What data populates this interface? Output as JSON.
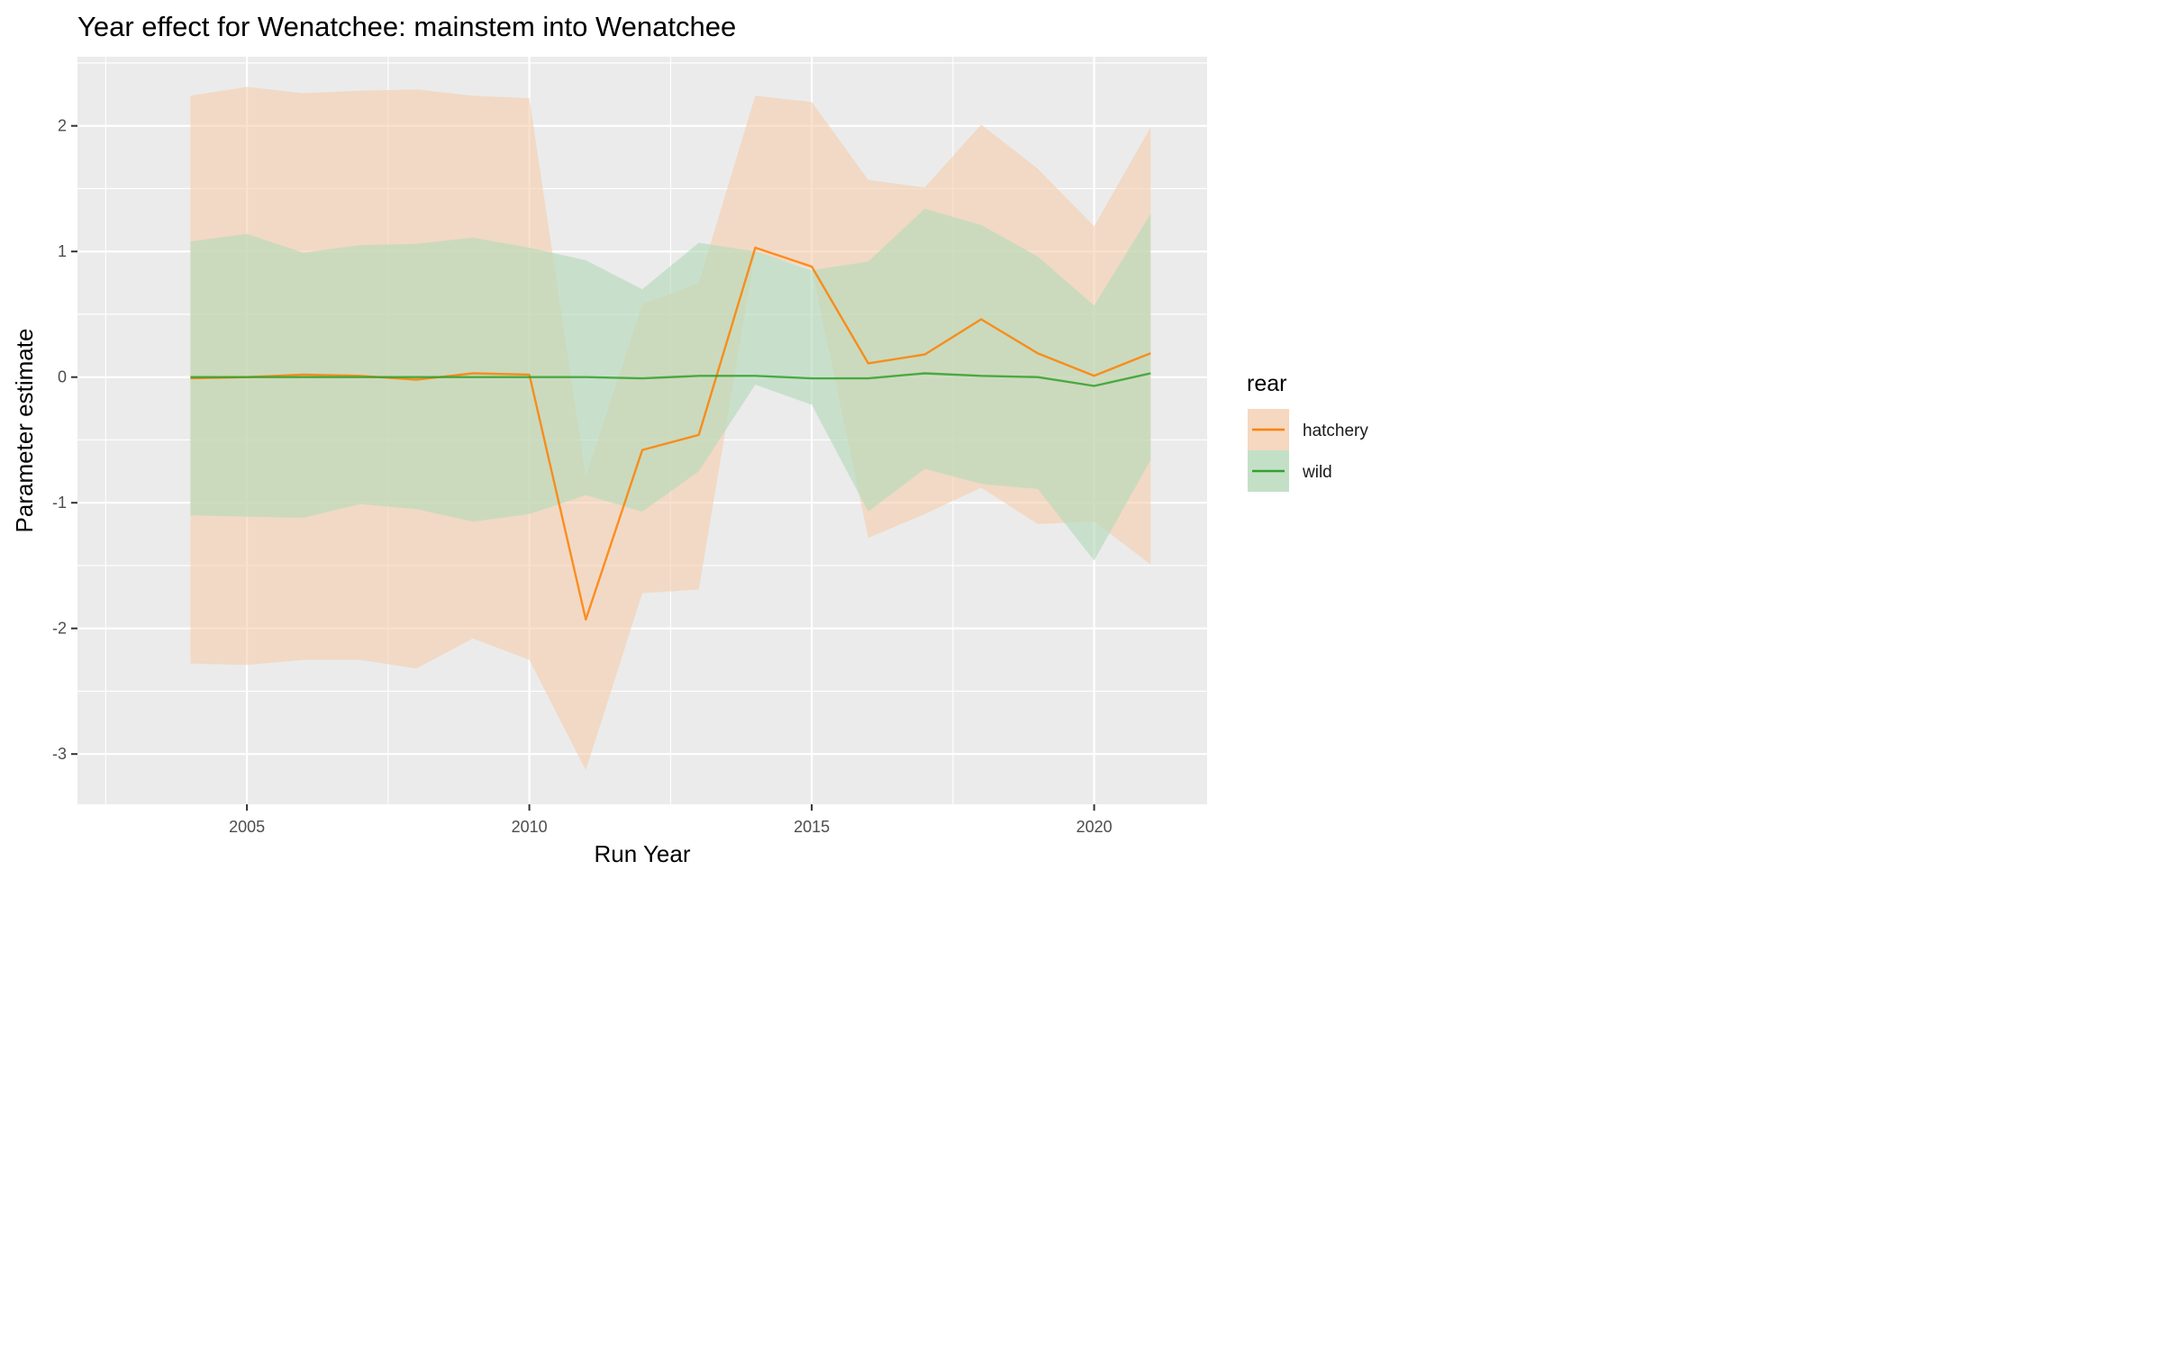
{
  "chart_data": {
    "type": "line",
    "title": "Year effect for Wenatchee: mainstem into Wenatchee",
    "xlabel": "Run Year",
    "ylabel": "Parameter estimate",
    "xlim": [
      2002.0,
      2022.0
    ],
    "ylim": [
      -3.4,
      2.55
    ],
    "x_ticks": [
      2005,
      2010,
      2015,
      2020
    ],
    "y_ticks": [
      -3,
      -2,
      -1,
      0,
      1,
      2
    ],
    "grid": true,
    "legend": {
      "title": "rear",
      "position": "right"
    },
    "x": [
      2004,
      2005,
      2006,
      2007,
      2008,
      2009,
      2010,
      2011,
      2012,
      2013,
      2014,
      2015,
      2016,
      2017,
      2018,
      2019,
      2020,
      2021
    ],
    "series": [
      {
        "name": "hatchery",
        "color": "#ff7f00",
        "fill": "#f5cfae",
        "values": [
          -0.01,
          0.0,
          0.02,
          0.01,
          -0.02,
          0.03,
          0.02,
          -1.93,
          -0.58,
          -0.46,
          1.03,
          0.88,
          0.11,
          0.18,
          0.46,
          0.19,
          0.01,
          0.19
        ],
        "lower": [
          -2.28,
          -2.29,
          -2.25,
          -2.25,
          -2.32,
          -2.08,
          -2.25,
          -3.13,
          -1.72,
          -1.69,
          0.99,
          0.86,
          -1.28,
          -1.09,
          -0.88,
          -1.17,
          -1.15,
          -1.49
        ],
        "upper": [
          2.24,
          2.31,
          2.26,
          2.28,
          2.29,
          2.24,
          2.22,
          -0.79,
          0.58,
          0.75,
          2.24,
          2.19,
          1.57,
          1.51,
          2.01,
          1.66,
          1.2,
          1.99
        ]
      },
      {
        "name": "wild",
        "color": "#33a02c",
        "fill": "#b3dab8",
        "values": [
          0.0,
          0.0,
          0.0,
          0.0,
          0.0,
          0.0,
          0.0,
          0.0,
          -0.01,
          0.01,
          0.01,
          -0.01,
          -0.01,
          0.03,
          0.01,
          0.0,
          -0.07,
          0.03
        ],
        "lower": [
          -1.1,
          -1.11,
          -1.12,
          -1.01,
          -1.05,
          -1.15,
          -1.09,
          -0.94,
          -1.07,
          -0.75,
          -0.06,
          -0.22,
          -1.07,
          -0.73,
          -0.85,
          -0.89,
          -1.46,
          -0.66
        ],
        "upper": [
          1.08,
          1.14,
          0.99,
          1.05,
          1.06,
          1.11,
          1.03,
          0.93,
          0.7,
          1.07,
          1.0,
          0.85,
          0.92,
          1.34,
          1.21,
          0.96,
          0.57,
          1.3
        ]
      }
    ]
  }
}
